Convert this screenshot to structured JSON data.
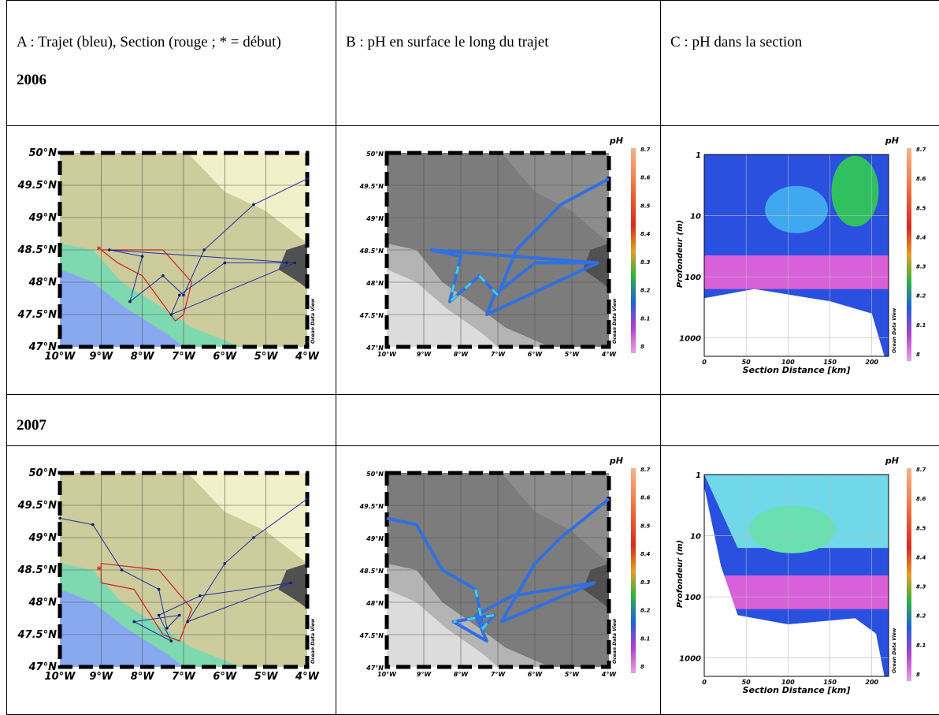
{
  "table": {
    "header": [
      "A : Trajet (bleu), Section (rouge ; * = début)",
      "B : pH en surface le long du trajet",
      "C : pH dans la section"
    ],
    "years": [
      "2006",
      "2007"
    ]
  },
  "map": {
    "lat_labels": [
      "50°N",
      "49.5°N",
      "49°N",
      "48.5°N",
      "48°N",
      "47.5°N",
      "47°N"
    ],
    "lon_labels": [
      "10°W",
      "9°W",
      "8°W",
      "7°W",
      "6°W",
      "5°W",
      "4°W"
    ],
    "watermark": "Ocean Data View"
  },
  "colorbar": {
    "title": "pH",
    "labels": [
      "8.7",
      "8.6",
      "8.5",
      "8.4",
      "8.3",
      "8.2",
      "8.1",
      "8"
    ]
  },
  "section": {
    "y_labels": [
      "1",
      "10",
      "100",
      "1000"
    ],
    "x_labels": [
      "0",
      "50",
      "100",
      "150",
      "200"
    ],
    "ylabel": "Profondeur (m)",
    "xlabel": "Section Distance [km]"
  }
}
